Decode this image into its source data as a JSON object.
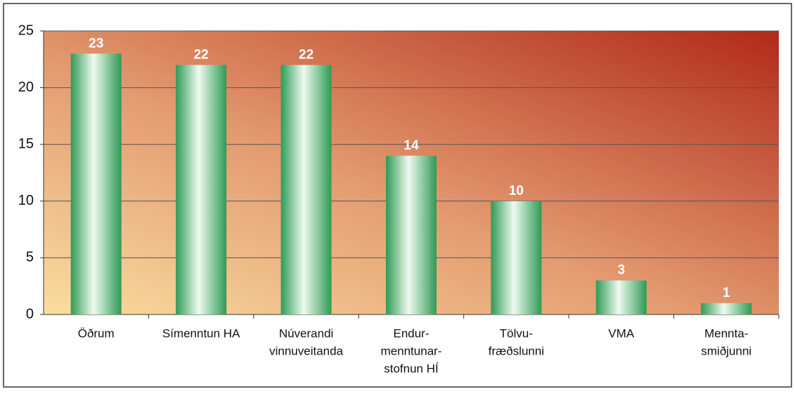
{
  "chart_data": {
    "type": "bar",
    "categories": [
      [
        "Öðrum"
      ],
      [
        "Símenntun HA"
      ],
      [
        "Núverandi",
        "vinnuveitanda"
      ],
      [
        "Endur-",
        "menntunar-",
        "stofnun HÍ"
      ],
      [
        "Tölvu-",
        "fræðslunni"
      ],
      [
        "VMA"
      ],
      [
        "Mennta-",
        "smiðjunni"
      ]
    ],
    "values": [
      23,
      22,
      22,
      14,
      10,
      3,
      1
    ],
    "color": "#2f9a55",
    "ylim": [
      0,
      25
    ],
    "yticks": [
      0,
      5,
      10,
      15,
      20,
      25
    ],
    "grid": true
  }
}
